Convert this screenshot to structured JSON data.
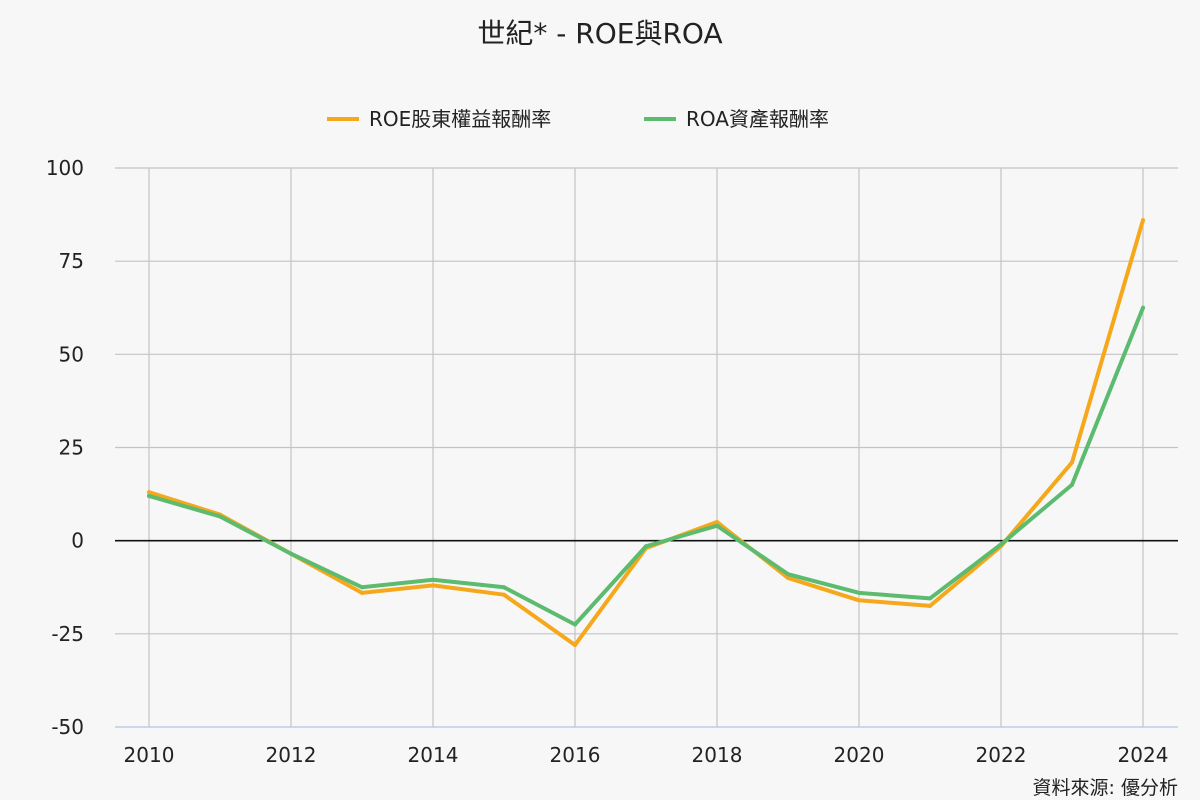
{
  "chart_data": {
    "type": "line",
    "title": "世紀* - ROE與ROA",
    "xlabel": "",
    "ylabel": "",
    "x": [
      2010,
      2011,
      2012,
      2013,
      2014,
      2015,
      2016,
      2017,
      2018,
      2019,
      2020,
      2021,
      2022,
      2023,
      2024
    ],
    "x_ticks": [
      "2010",
      "2012",
      "2014",
      "2016",
      "2018",
      "2020",
      "2022",
      "2024"
    ],
    "y_ticks": [
      "100",
      "75",
      "50",
      "25",
      "0",
      "-25",
      "-50"
    ],
    "xlim": [
      2010,
      2024
    ],
    "ylim": [
      -50,
      100
    ],
    "grid": true,
    "legend_position": "top",
    "series": [
      {
        "name": "ROE股東權益報酬率",
        "color": "#f5a81c",
        "values": [
          13,
          7,
          -3.5,
          -14,
          -12,
          -14.5,
          -28,
          -2,
          5,
          -10,
          -16,
          -17.5,
          -1.5,
          21,
          86
        ]
      },
      {
        "name": "ROA資產報酬率",
        "color": "#5cbb6f",
        "values": [
          12,
          6.5,
          -3.5,
          -12.5,
          -10.5,
          -12.5,
          -22.5,
          -1.5,
          4,
          -9,
          -14,
          -15.5,
          -1,
          15,
          62.5
        ]
      }
    ],
    "source": "資料來源: 優分析"
  }
}
